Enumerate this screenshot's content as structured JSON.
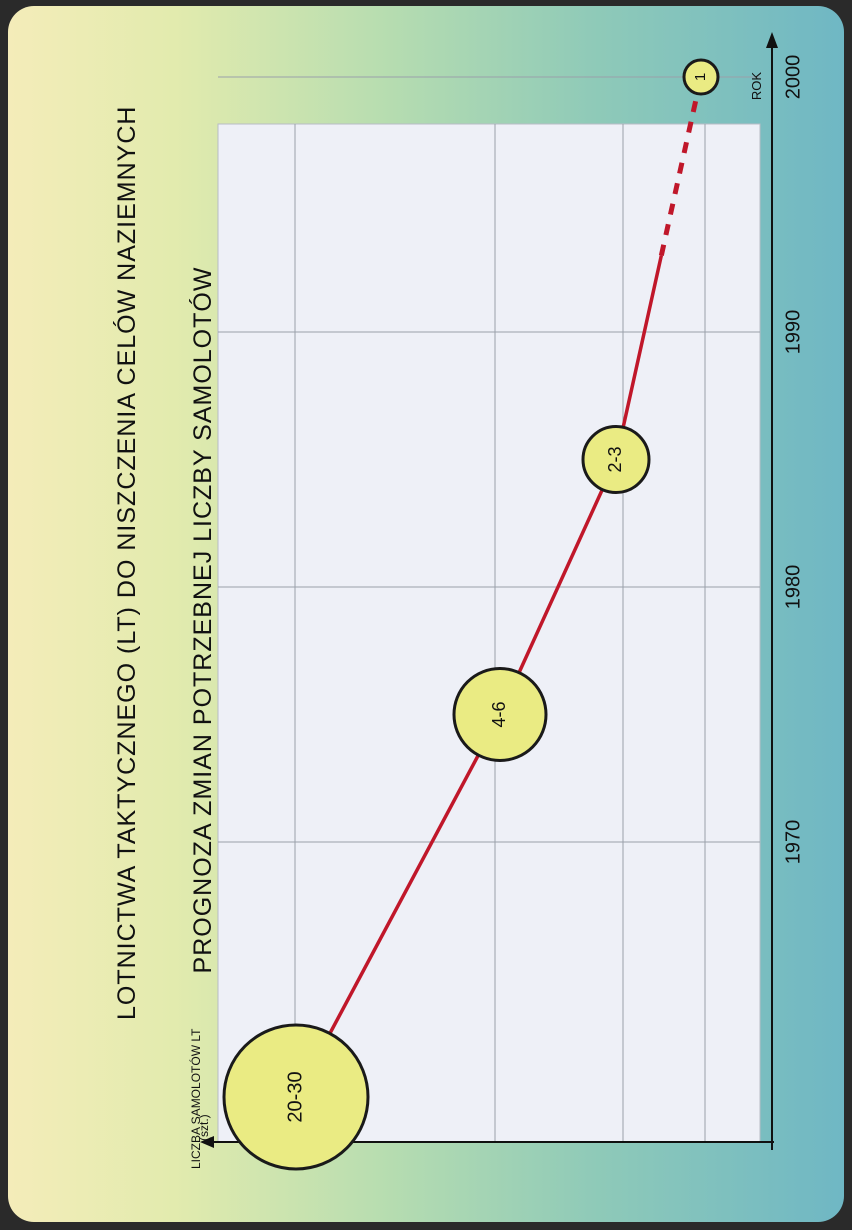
{
  "title": {
    "line1": "PROGNOZA ZMIAN POTRZEBNEJ LICZBY SAMOLOTÓW",
    "line2": "LOTNICTWA TAKTYCZNEGO (LT) DO NISZCZENIA CELÓW NAZIEMNYCH"
  },
  "colors": {
    "line": "#c0172a",
    "bubble_fill": "#eaeb83",
    "bubble_stroke": "#1a1a1a",
    "plot_bg": "#eef0f7",
    "grid": "#9aa0aa"
  },
  "chart_data": {
    "type": "line",
    "title": "PROGNOZA ZMIAN POTRZEBNEJ LICZBY SAMOLOTÓW LOTNICTWA TAKTYCZNEGO (LT) DO NISZCZENIA CELÓW NAZIEMNYCH",
    "xlabel": "ROK",
    "ylabel": "LICZBA SAMOLOTÓW LT (szt.)",
    "ylabel_line1": "LICZBA SAMOLOTÓW LT",
    "ylabel_line2": "(szt.)",
    "x_ticks": [
      "1970",
      "1980",
      "1990",
      "2000"
    ],
    "xlim": [
      1958,
      2000
    ],
    "grid": true,
    "series": [
      {
        "points": [
          {
            "x": 1960,
            "label": "20-30",
            "value_range": [
              20,
              30
            ]
          },
          {
            "x": 1975,
            "label": "4-6",
            "value_range": [
              4,
              6
            ]
          },
          {
            "x": 1985,
            "label": "2-3",
            "value_range": [
              2,
              3
            ]
          },
          {
            "x": 2000,
            "label": "1",
            "value_range": [
              1,
              1
            ]
          }
        ],
        "forecast_from_x": 1993
      }
    ]
  }
}
